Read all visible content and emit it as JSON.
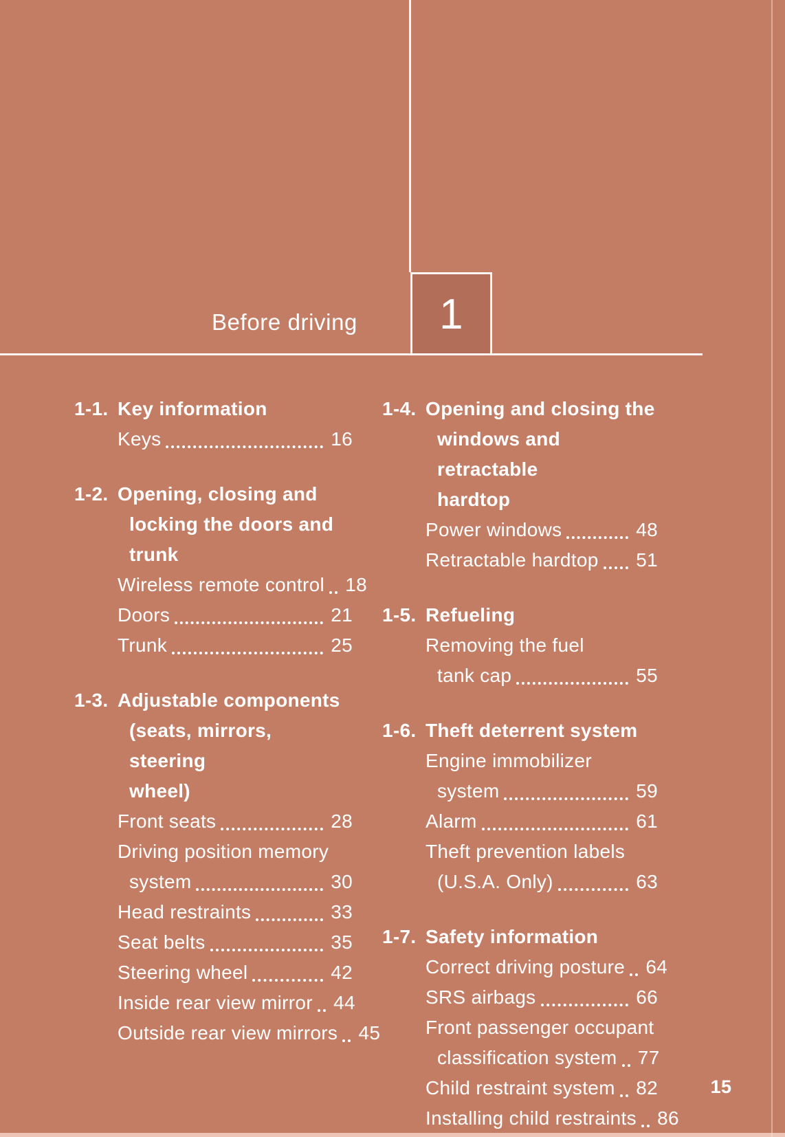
{
  "page": {
    "chapter_number": "1",
    "chapter_title": "Before driving",
    "page_number": "15"
  },
  "colors": {
    "background": "#C47D65",
    "chapter_box": "#B26E59",
    "text": "#FFFFFF"
  },
  "toc": {
    "left_column": [
      {
        "number": "1-1.",
        "title": "Key information",
        "entries": [
          {
            "label": "Keys",
            "page": "16"
          }
        ]
      },
      {
        "number": "1-2.",
        "title": "Opening, closing and\nlocking the doors and\ntrunk",
        "entries": [
          {
            "label": "Wireless remote control",
            "page": "18"
          },
          {
            "label": "Doors",
            "page": "21"
          },
          {
            "label": "Trunk",
            "page": "25"
          }
        ]
      },
      {
        "number": "1-3.",
        "title": "Adjustable components\n(seats, mirrors, steering\nwheel)",
        "entries": [
          {
            "label": "Front seats",
            "page": "28"
          },
          {
            "pre": "Driving position memory",
            "label": "system",
            "page": "30"
          },
          {
            "label": "Head restraints",
            "page": "33"
          },
          {
            "label": "Seat belts",
            "page": "35"
          },
          {
            "label": "Steering wheel",
            "page": "42"
          },
          {
            "label": "Inside rear view mirror",
            "page": "44"
          },
          {
            "label": "Outside rear view mirrors",
            "page": "45"
          }
        ]
      }
    ],
    "right_column": [
      {
        "number": "1-4.",
        "title": "Opening and closing the\nwindows and retractable\nhardtop",
        "entries": [
          {
            "label": "Power windows",
            "page": "48"
          },
          {
            "label": "Retractable hardtop",
            "page": "51"
          }
        ]
      },
      {
        "number": "1-5.",
        "title": "Refueling",
        "entries": [
          {
            "pre": "Removing the fuel",
            "label": "tank cap",
            "page": "55"
          }
        ]
      },
      {
        "number": "1-6.",
        "title": "Theft deterrent system",
        "entries": [
          {
            "pre": "Engine immobilizer",
            "label": "system",
            "page": "59"
          },
          {
            "label": "Alarm",
            "page": "61"
          },
          {
            "pre": "Theft prevention labels",
            "label": "(U.S.A. Only)",
            "page": "63"
          }
        ]
      },
      {
        "number": "1-7.",
        "title": "Safety information",
        "entries": [
          {
            "label": "Correct driving posture",
            "page": "64"
          },
          {
            "label": "SRS airbags",
            "page": "66"
          },
          {
            "pre": "Front passenger occupant",
            "label": "classification system",
            "page": "77"
          },
          {
            "label": "Child restraint system",
            "page": "82"
          },
          {
            "label": "Installing child restraints",
            "page": "86"
          }
        ]
      }
    ]
  }
}
